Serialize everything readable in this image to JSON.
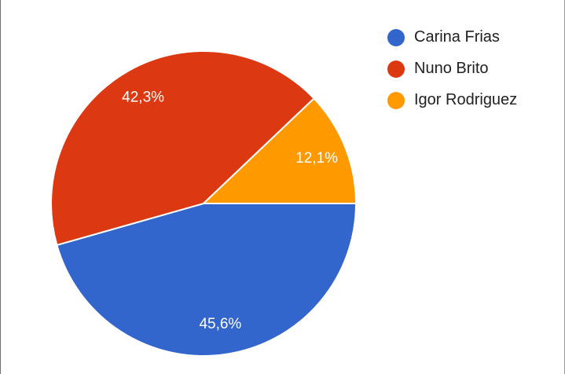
{
  "chart_data": {
    "type": "pie",
    "title": "",
    "slices": [
      {
        "label": "Carina Frias",
        "value": 45.6,
        "display": "45,6%",
        "color": "#3366cc"
      },
      {
        "label": "Nuno Brito",
        "value": 42.3,
        "display": "42,3%",
        "color": "#dc3912"
      },
      {
        "label": "Igor Rodriguez",
        "value": 12.1,
        "display": "12,1%",
        "color": "#ff9900"
      }
    ],
    "legend_position": "right",
    "start_angle_deg": 0,
    "direction": "clockwise-from-east"
  },
  "legend": {
    "items": [
      {
        "label": "Carina Frias",
        "color": "#3366cc"
      },
      {
        "label": "Nuno Brito",
        "color": "#dc3912"
      },
      {
        "label": "Igor Rodriguez",
        "color": "#ff9900"
      }
    ]
  }
}
